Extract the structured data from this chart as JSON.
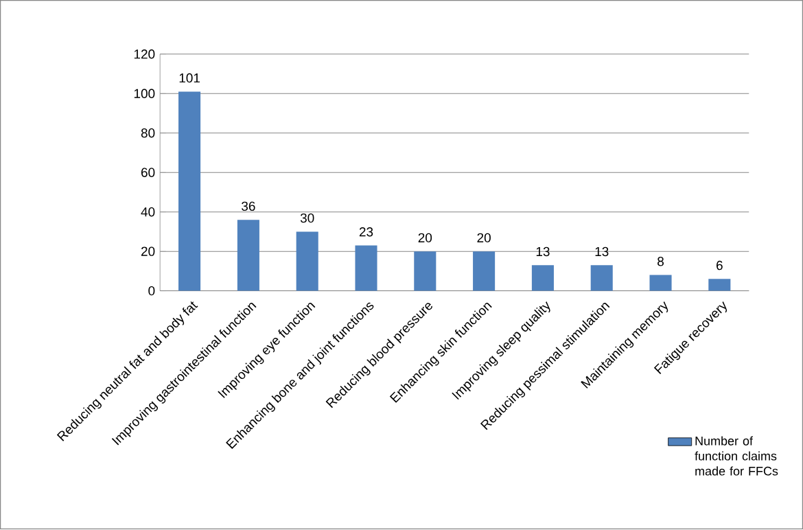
{
  "chart_data": {
    "type": "bar",
    "categories": [
      "Reducing neutral fat and body fat",
      "Improving gastrointestinal function",
      "Improving eye function",
      "Enhancing bone and joint functions",
      "Reducing blood pressure",
      "Enhancing skin function",
      "Improving sleep quality",
      "Reducing pessimal stimulation",
      "Maintaining memory",
      "Fatigue recovery"
    ],
    "series": [
      {
        "name": "Number of function claims made for FFCs",
        "color": "#4f81bd",
        "values": [
          101,
          36,
          30,
          23,
          20,
          20,
          13,
          13,
          8,
          6
        ]
      }
    ],
    "ylim": [
      0,
      120
    ],
    "yticks": [
      0,
      20,
      40,
      60,
      80,
      100,
      120
    ],
    "grid": "y",
    "legend": "bottom right",
    "data_labels": true
  }
}
